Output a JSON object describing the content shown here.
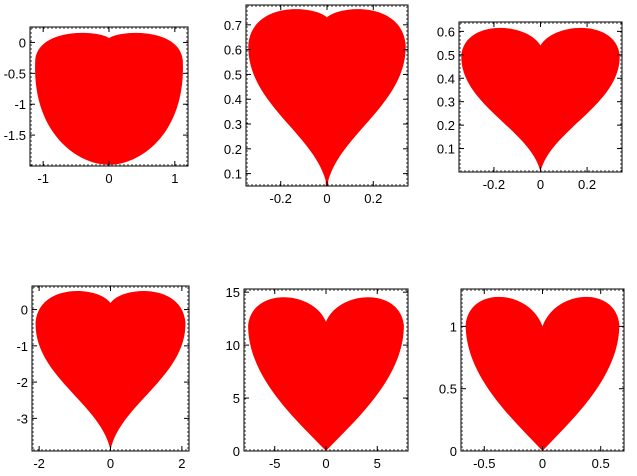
{
  "colors": {
    "fill": "#ff0000",
    "axis": "#000000",
    "background": "#ffffff"
  },
  "chart_data": [
    {
      "type": "area",
      "shape": "heart",
      "curve": "x = sin(t)*cos(t)*ln|t|, y = |t|^0.3 * cos(t)^0.5",
      "xlim": [
        -1.2,
        1.2
      ],
      "ylim": [
        -2.0,
        0.25
      ],
      "xticks": [
        -1,
        0,
        1
      ],
      "xtick_labels": [
        "-1",
        "0",
        "1"
      ],
      "yticks": [
        0,
        -0.5,
        -1,
        -1.5
      ],
      "ytick_labels": [
        "0",
        "-0.5",
        "-1",
        "-1.5"
      ]
    },
    {
      "type": "area",
      "shape": "heart",
      "xlim": [
        -0.35,
        0.35
      ],
      "ylim": [
        0.05,
        0.78
      ],
      "xticks": [
        -0.2,
        0,
        0.2
      ],
      "xtick_labels": [
        "-0.2",
        "0",
        "0.2"
      ],
      "yticks": [
        0.7,
        0.6,
        0.5,
        0.4,
        0.3,
        0.2,
        0.1
      ],
      "ytick_labels": [
        "0.7",
        "0.6",
        "0.5",
        "0.4",
        "0.3",
        "0.2",
        "0.1"
      ]
    },
    {
      "type": "area",
      "shape": "heart",
      "xlim": [
        -0.35,
        0.35
      ],
      "ylim": [
        0.0,
        0.64
      ],
      "xticks": [
        -0.2,
        0,
        0.2
      ],
      "xtick_labels": [
        "-0.2",
        "0",
        "0.2"
      ],
      "yticks": [
        0.6,
        0.5,
        0.4,
        0.3,
        0.2,
        0.1
      ],
      "ytick_labels": [
        "0.6",
        "0.5",
        "0.4",
        "0.3",
        "0.2",
        "0.1"
      ]
    },
    {
      "type": "area",
      "shape": "heart",
      "xlim": [
        -2.2,
        2.2
      ],
      "ylim": [
        -3.9,
        0.65
      ],
      "xticks": [
        -2,
        0,
        2
      ],
      "xtick_labels": [
        "-2",
        "0",
        "2"
      ],
      "yticks": [
        0,
        -1,
        -2,
        -3
      ],
      "ytick_labels": [
        "0",
        "-1",
        "-2",
        "-3"
      ]
    },
    {
      "type": "area",
      "shape": "heart",
      "xlim": [
        -8.0,
        8.0
      ],
      "ylim": [
        0,
        15.3
      ],
      "xticks": [
        -5,
        0,
        5
      ],
      "xtick_labels": [
        "-5",
        "0",
        "5"
      ],
      "yticks": [
        15,
        10,
        5,
        0
      ],
      "ytick_labels": [
        "15",
        "10",
        "5",
        "0"
      ]
    },
    {
      "type": "area",
      "shape": "heart",
      "xlim": [
        -0.7,
        0.7
      ],
      "ylim": [
        0,
        1.3
      ],
      "xticks": [
        -0.5,
        0,
        0.5
      ],
      "xtick_labels": [
        "-0.5",
        "0",
        "0.5"
      ],
      "yticks": [
        1,
        0.5,
        0
      ],
      "ytick_labels": [
        "1",
        "0.5",
        "0"
      ]
    }
  ]
}
